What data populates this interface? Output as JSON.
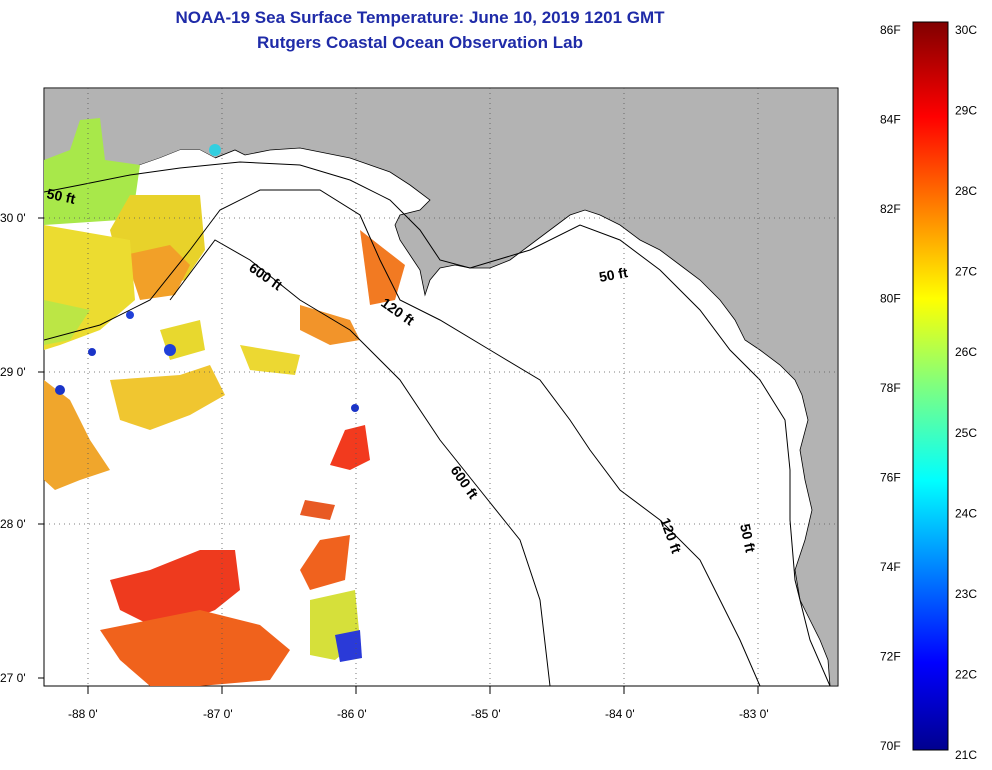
{
  "title": "NOAA-19 Sea Surface Temperature:  June 10, 2019 1201 GMT",
  "subtitle": "Rutgers Coastal Ocean Observation Lab",
  "map": {
    "lon_labels": [
      "-88 0'",
      "-87 0'",
      "-86 0'",
      "-85 0'",
      "-84 0'",
      "-83 0'"
    ],
    "lat_labels": [
      "30 0'",
      "29 0'",
      "28 0'",
      "27 0'"
    ],
    "contour_labels": {
      "c50_west": "50 ft",
      "c600_north": "600 ft",
      "c120_north": "120 ft",
      "c50_east": "50 ft",
      "c600_south": "600 ft",
      "c120_south": "120 ft",
      "c50_south": "50 ft"
    },
    "colors": {
      "land": "#b3b3b3",
      "ocean": "#ffffff",
      "grid": "#555555"
    }
  },
  "colorbar": {
    "fahrenheit_labels": [
      "86F",
      "84F",
      "82F",
      "80F",
      "78F",
      "76F",
      "74F",
      "72F",
      "70F"
    ],
    "celsius_labels": [
      "30C",
      "29C",
      "28C",
      "27C",
      "26C",
      "25C",
      "24C",
      "23C",
      "22C",
      "21C"
    ],
    "min_c": 21,
    "max_c": 30
  }
}
